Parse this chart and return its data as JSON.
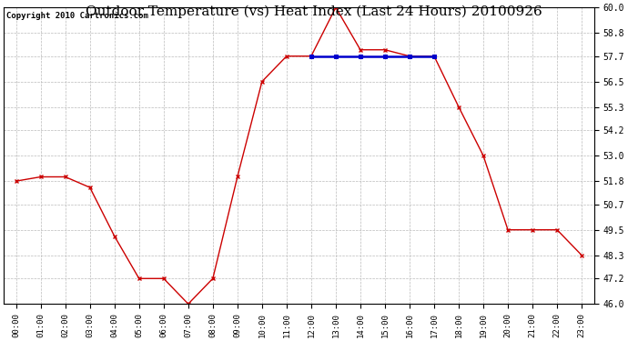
{
  "title": "Outdoor Temperature (vs) Heat Index (Last 24 Hours) 20100926",
  "copyright": "Copyright 2010 Cartronics.com",
  "hours": [
    "00:00",
    "01:00",
    "02:00",
    "03:00",
    "04:00",
    "05:00",
    "06:00",
    "07:00",
    "08:00",
    "09:00",
    "10:00",
    "11:00",
    "12:00",
    "13:00",
    "14:00",
    "15:00",
    "16:00",
    "17:00",
    "18:00",
    "19:00",
    "20:00",
    "21:00",
    "22:00",
    "23:00"
  ],
  "temp_values": [
    51.8,
    52.0,
    52.0,
    51.5,
    49.2,
    47.2,
    47.2,
    46.0,
    47.2,
    52.0,
    56.5,
    57.7,
    57.7,
    60.0,
    58.0,
    58.0,
    57.7,
    57.7,
    55.3,
    53.0,
    49.5,
    49.5,
    49.5,
    48.3
  ],
  "heat_index_values": [
    null,
    null,
    null,
    null,
    null,
    null,
    null,
    null,
    null,
    null,
    null,
    null,
    57.7,
    57.7,
    57.7,
    57.7,
    57.7,
    57.7,
    null,
    null,
    null,
    null,
    null,
    null
  ],
  "temp_color": "#cc0000",
  "heat_color": "#0000cc",
  "bg_color": "#ffffff",
  "grid_color": "#bbbbbb",
  "ylim_min": 46.0,
  "ylim_max": 60.0,
  "yticks": [
    46.0,
    47.2,
    48.3,
    49.5,
    50.7,
    51.8,
    53.0,
    54.2,
    55.3,
    56.5,
    57.7,
    58.8,
    60.0
  ],
  "title_fontsize": 11,
  "copyright_fontsize": 6.5
}
